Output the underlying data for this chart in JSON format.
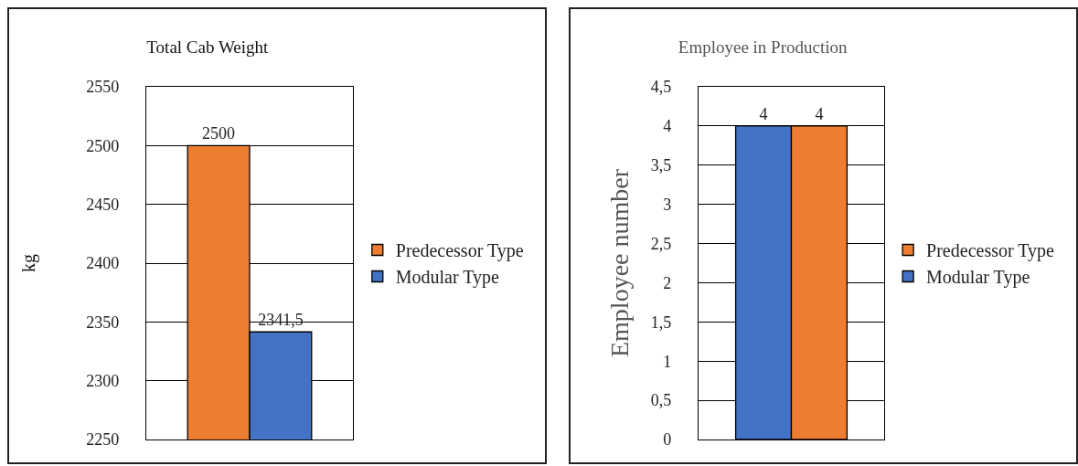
{
  "chart_data": [
    {
      "type": "bar",
      "title": "Total Cab Weight",
      "ylabel": "kg",
      "categories": [
        null
      ],
      "ylim": [
        2250,
        2550
      ],
      "yticks": [
        2250,
        2300,
        2350,
        2400,
        2450,
        2500,
        2550
      ],
      "grid": "y",
      "legend": "right",
      "series": [
        {
          "name": "Predecessor Type",
          "color": "#ed7d31",
          "values": [
            2500
          ],
          "value_labels": [
            "2500"
          ]
        },
        {
          "name": "Modular Type",
          "color": "#4472c4",
          "values": [
            2341.5
          ],
          "value_labels": [
            "2341,5"
          ]
        }
      ]
    },
    {
      "type": "bar",
      "title": "Employee in Production",
      "ylabel": "Employee number",
      "categories": [
        null
      ],
      "ylim": [
        0,
        4.5
      ],
      "yticks": [
        0,
        {
          "value": 0.5,
          "label": "0,5"
        },
        1,
        {
          "value": 1.5,
          "label": "1,5"
        },
        2,
        {
          "value": 2.5,
          "label": "2,5"
        },
        3,
        {
          "value": 3.5,
          "label": "3,5"
        },
        4,
        {
          "value": 4.5,
          "label": "4,5"
        }
      ],
      "grid": "y",
      "legend": "right",
      "data_labels": true,
      "series": [
        {
          "name": "Modular Type",
          "color": "#4472c4",
          "values": [
            4
          ]
        },
        {
          "name": "Predecessor Type",
          "color": "#ed7d31",
          "values": [
            4
          ]
        }
      ]
    }
  ]
}
